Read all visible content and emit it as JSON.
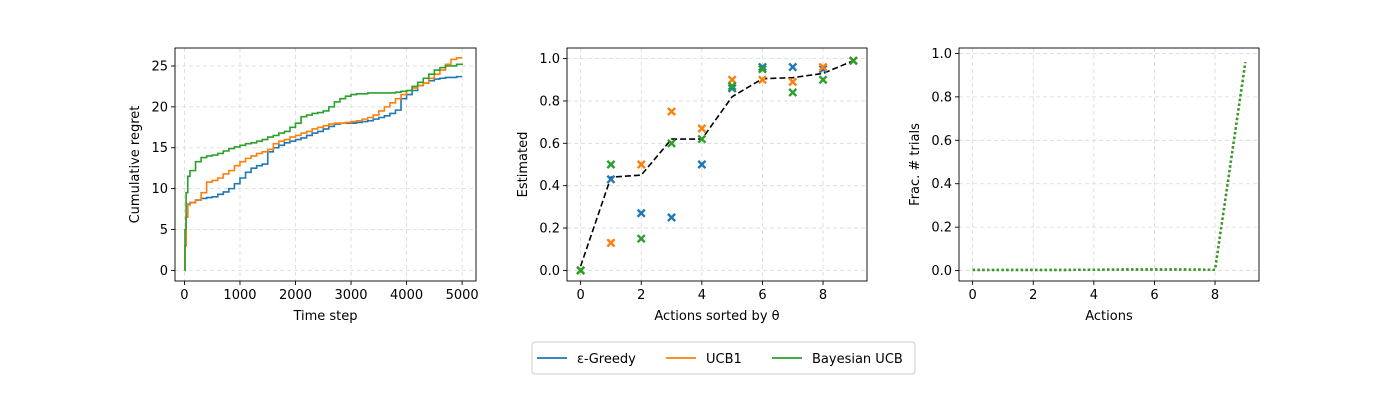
{
  "colors": {
    "eps_greedy": "#1f77b4",
    "ucb1": "#ff7f0e",
    "bayesian_ucb": "#2ca02c",
    "true_prob": "#000000",
    "grid": "#d9d9d9"
  },
  "legend": {
    "items": [
      {
        "label": "ε-Greedy",
        "color": "#1f77b4"
      },
      {
        "label": "UCB1",
        "color": "#ff7f0e"
      },
      {
        "label": "Bayesian UCB",
        "color": "#2ca02c"
      }
    ],
    "placement": "bottom-center"
  },
  "chart_data": [
    {
      "type": "line",
      "title": "",
      "xlabel": "Time step",
      "ylabel": "Cumulative regret",
      "xlim": [
        -170,
        5250
      ],
      "ylim": [
        -1.3,
        27.2
      ],
      "xticks": [
        0,
        1000,
        2000,
        3000,
        4000,
        5000
      ],
      "yticks": [
        0,
        5,
        10,
        15,
        20,
        25
      ],
      "grid": true,
      "drawstyle": "steps",
      "series": [
        {
          "name": "ε-Greedy",
          "color": "#1f77b4",
          "x": [
            0,
            10,
            30,
            60,
            100,
            200,
            300,
            400,
            500,
            600,
            700,
            800,
            900,
            1000,
            1100,
            1200,
            1300,
            1400,
            1500,
            1600,
            1700,
            1800,
            1900,
            2000,
            2100,
            2200,
            2300,
            2400,
            2500,
            2600,
            2700,
            2800,
            2900,
            3000,
            3100,
            3200,
            3300,
            3400,
            3500,
            3600,
            3700,
            3800,
            3900,
            4000,
            4100,
            4200,
            4300,
            4400,
            4500,
            4600,
            4700,
            4800,
            4900,
            5000
          ],
          "values": [
            0,
            3,
            6.5,
            8.1,
            8.3,
            8.6,
            8.8,
            8.9,
            9.0,
            9.3,
            9.6,
            10.0,
            10.6,
            11.3,
            12.0,
            12.5,
            12.8,
            13.0,
            14.5,
            15.0,
            15.3,
            15.6,
            15.8,
            16.0,
            16.2,
            16.5,
            16.8,
            17.0,
            17.3,
            17.6,
            17.9,
            18.0,
            18.0,
            18.0,
            18.1,
            18.2,
            18.3,
            18.5,
            18.7,
            18.9,
            19.2,
            19.6,
            21.0,
            21.5,
            22.0,
            22.6,
            22.9,
            23.2,
            23.4,
            23.5,
            23.6,
            23.6,
            23.7,
            23.7
          ]
        },
        {
          "name": "UCB1",
          "color": "#ff7f0e",
          "x": [
            0,
            10,
            30,
            60,
            100,
            200,
            300,
            400,
            500,
            600,
            700,
            800,
            900,
            1000,
            1100,
            1200,
            1300,
            1400,
            1500,
            1600,
            1700,
            1800,
            1900,
            2000,
            2100,
            2200,
            2300,
            2400,
            2500,
            2600,
            2700,
            2800,
            2900,
            3000,
            3100,
            3200,
            3300,
            3400,
            3500,
            3600,
            3700,
            3800,
            3900,
            4000,
            4100,
            4200,
            4300,
            4400,
            4500,
            4600,
            4700,
            4800,
            4900,
            5000
          ],
          "values": [
            0,
            3,
            6.5,
            8.0,
            8.3,
            8.6,
            9.5,
            10.8,
            11.0,
            11.3,
            11.8,
            12.2,
            12.8,
            13.3,
            13.7,
            14.0,
            14.3,
            14.5,
            14.8,
            15.5,
            15.8,
            16.0,
            16.3,
            16.5,
            16.8,
            17.0,
            17.3,
            17.5,
            17.7,
            17.9,
            18.0,
            18.0,
            18.1,
            18.2,
            18.3,
            18.5,
            18.7,
            19.0,
            19.5,
            20.0,
            20.5,
            21.0,
            21.5,
            22.0,
            22.3,
            22.6,
            22.9,
            23.5,
            24.0,
            24.5,
            25.2,
            25.8,
            26.0,
            26.0
          ]
        },
        {
          "name": "Bayesian UCB",
          "color": "#2ca02c",
          "x": [
            0,
            10,
            30,
            60,
            100,
            200,
            300,
            400,
            500,
            600,
            700,
            800,
            900,
            1000,
            1100,
            1200,
            1300,
            1400,
            1500,
            1600,
            1700,
            1800,
            1900,
            2000,
            2100,
            2200,
            2300,
            2400,
            2500,
            2600,
            2700,
            2800,
            2900,
            3000,
            3100,
            3200,
            3300,
            3400,
            3500,
            3600,
            3700,
            3800,
            3900,
            4000,
            4100,
            4200,
            4300,
            4400,
            4500,
            4600,
            4700,
            4800,
            4900,
            5000
          ],
          "values": [
            0,
            5,
            9.5,
            11.5,
            12.2,
            13.3,
            13.8,
            14.0,
            14.1,
            14.3,
            14.6,
            14.9,
            15.1,
            15.3,
            15.5,
            15.6,
            15.8,
            16.0,
            16.3,
            16.5,
            16.8,
            17.0,
            17.5,
            18.0,
            18.8,
            19.0,
            19.2,
            19.3,
            19.5,
            20.0,
            20.6,
            21.0,
            21.3,
            21.5,
            21.6,
            21.6,
            21.7,
            21.7,
            21.7,
            21.7,
            21.7,
            21.8,
            21.9,
            22.0,
            22.5,
            23.0,
            23.5,
            24.0,
            24.5,
            24.8,
            25.0,
            25.0,
            25.2,
            25.3
          ]
        }
      ]
    },
    {
      "type": "scatter",
      "title": "",
      "xlabel": "Actions sorted by θ",
      "ylabel": "Estimated",
      "xlim": [
        -0.45,
        9.45
      ],
      "ylim": [
        -0.05,
        1.05
      ],
      "xticks": [
        0,
        2,
        4,
        6,
        8
      ],
      "yticks": [
        0.0,
        0.2,
        0.4,
        0.6,
        0.8,
        1.0
      ],
      "grid": true,
      "true_line": {
        "x": [
          0,
          1,
          2,
          3,
          4,
          5,
          6,
          7,
          8,
          9
        ],
        "values": [
          0.02,
          0.44,
          0.45,
          0.62,
          0.62,
          0.82,
          0.905,
          0.91,
          0.93,
          0.99
        ]
      },
      "series": [
        {
          "name": "ε-Greedy",
          "color": "#1f77b4",
          "x": [
            0,
            1,
            2,
            3,
            4,
            5,
            6,
            7,
            8,
            9
          ],
          "values": [
            0.0,
            0.43,
            0.27,
            0.25,
            0.5,
            0.86,
            0.96,
            0.96,
            0.95,
            0.99
          ]
        },
        {
          "name": "UCB1",
          "color": "#ff7f0e",
          "x": [
            0,
            1,
            2,
            3,
            4,
            5,
            6,
            7,
            8,
            9
          ],
          "values": [
            0.0,
            0.13,
            0.5,
            0.75,
            0.67,
            0.9,
            0.9,
            0.89,
            0.96,
            0.99
          ]
        },
        {
          "name": "Bayesian UCB",
          "color": "#2ca02c",
          "x": [
            0,
            1,
            2,
            3,
            4,
            5,
            6,
            7,
            8,
            9
          ],
          "values": [
            0.0,
            0.5,
            0.15,
            0.6,
            0.62,
            0.87,
            0.95,
            0.84,
            0.9,
            0.99
          ]
        }
      ]
    },
    {
      "type": "line",
      "title": "",
      "xlabel": "Actions",
      "ylabel": "Frac. # trials",
      "xlim": [
        -0.45,
        9.45
      ],
      "ylim": [
        -0.048,
        1.025
      ],
      "xticks": [
        0,
        2,
        4,
        6,
        8
      ],
      "yticks": [
        0.0,
        0.2,
        0.4,
        0.6,
        0.8,
        1.0
      ],
      "grid": true,
      "linestyle": "dotted",
      "series": [
        {
          "name": "ε-Greedy",
          "color": "#1f77b4",
          "x": [
            0,
            1,
            2,
            3,
            4,
            5,
            6,
            7,
            8,
            9
          ],
          "values": [
            0.003,
            0.003,
            0.003,
            0.003,
            0.004,
            0.005,
            0.005,
            0.005,
            0.004,
            0.96
          ]
        },
        {
          "name": "UCB1",
          "color": "#ff7f0e",
          "x": [
            0,
            1,
            2,
            3,
            4,
            5,
            6,
            7,
            8,
            9
          ],
          "values": [
            0.003,
            0.003,
            0.003,
            0.003,
            0.004,
            0.005,
            0.005,
            0.005,
            0.004,
            0.96
          ]
        },
        {
          "name": "Bayesian UCB",
          "color": "#2ca02c",
          "x": [
            0,
            1,
            2,
            3,
            4,
            5,
            6,
            7,
            8,
            9
          ],
          "values": [
            0.003,
            0.003,
            0.003,
            0.003,
            0.004,
            0.005,
            0.005,
            0.005,
            0.004,
            0.96
          ]
        }
      ]
    }
  ]
}
